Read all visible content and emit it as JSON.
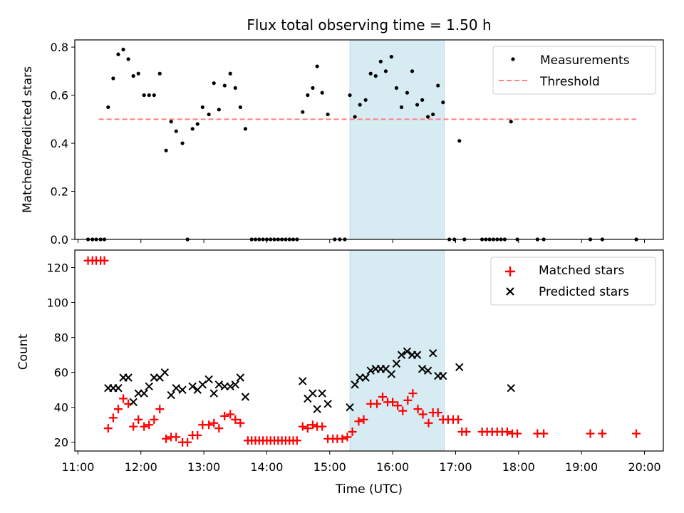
{
  "chart_data": [
    {
      "type": "scatter",
      "title": "Flux total observing time = 1.50 h",
      "xlabel": "",
      "ylabel": "Matched/Predicted stars",
      "xlim": [
        10.95,
        20.3
      ],
      "ylim": [
        0,
        0.83
      ],
      "yticks": [
        0.0,
        0.2,
        0.4,
        0.6,
        0.8
      ],
      "ytick_labels": [
        "0.0",
        "0.2",
        "0.4",
        "0.6",
        "0.8"
      ],
      "highlight_span": [
        15.32,
        16.82
      ],
      "legend": [
        "Measurements",
        "Threshold"
      ],
      "legend_position": "top-right",
      "threshold": {
        "name": "Threshold",
        "value": 0.5,
        "x_range": [
          11.33,
          19.87
        ],
        "color": "#ff7f7f"
      },
      "series": [
        {
          "name": "Measurements",
          "marker": "dot",
          "color": "#000000",
          "points": [
            [
              11.16,
              0
            ],
            [
              11.23,
              0
            ],
            [
              11.29,
              0
            ],
            [
              11.36,
              0
            ],
            [
              11.42,
              0
            ],
            [
              11.48,
              0.55
            ],
            [
              11.56,
              0.67
            ],
            [
              11.64,
              0.77
            ],
            [
              11.72,
              0.79
            ],
            [
              11.8,
              0.75
            ],
            [
              11.88,
              0.68
            ],
            [
              11.96,
              0.69
            ],
            [
              12.05,
              0.6
            ],
            [
              12.13,
              0.6
            ],
            [
              12.21,
              0.6
            ],
            [
              12.3,
              0.69
            ],
            [
              12.4,
              0.37
            ],
            [
              12.48,
              0.49
            ],
            [
              12.56,
              0.45
            ],
            [
              12.66,
              0.4
            ],
            [
              12.74,
              0
            ],
            [
              12.82,
              0.46
            ],
            [
              12.9,
              0.48
            ],
            [
              12.98,
              0.55
            ],
            [
              13.08,
              0.52
            ],
            [
              13.16,
              0.65
            ],
            [
              13.24,
              0.54
            ],
            [
              13.33,
              0.64
            ],
            [
              13.42,
              0.69
            ],
            [
              13.5,
              0.63
            ],
            [
              13.58,
              0.55
            ],
            [
              13.66,
              0.46
            ],
            [
              13.76,
              0
            ],
            [
              13.82,
              0
            ],
            [
              13.88,
              0
            ],
            [
              13.94,
              0
            ],
            [
              14.0,
              0
            ],
            [
              14.06,
              0
            ],
            [
              14.12,
              0
            ],
            [
              14.18,
              0
            ],
            [
              14.24,
              0
            ],
            [
              14.3,
              0
            ],
            [
              14.36,
              0
            ],
            [
              14.42,
              0
            ],
            [
              14.48,
              0
            ],
            [
              14.57,
              0.53
            ],
            [
              14.65,
              0.6
            ],
            [
              14.73,
              0.63
            ],
            [
              14.8,
              0.72
            ],
            [
              14.88,
              0.61
            ],
            [
              14.97,
              0.52
            ],
            [
              15.08,
              0
            ],
            [
              15.16,
              0
            ],
            [
              15.24,
              0
            ],
            [
              15.32,
              0.6
            ],
            [
              15.4,
              0.51
            ],
            [
              15.48,
              0.56
            ],
            [
              15.57,
              0.58
            ],
            [
              15.65,
              0.69
            ],
            [
              15.73,
              0.68
            ],
            [
              15.81,
              0.74
            ],
            [
              15.89,
              0.7
            ],
            [
              15.98,
              0.76
            ],
            [
              16.06,
              0.63
            ],
            [
              16.14,
              0.55
            ],
            [
              16.23,
              0.61
            ],
            [
              16.31,
              0.7
            ],
            [
              16.39,
              0.56
            ],
            [
              16.47,
              0.58
            ],
            [
              16.56,
              0.51
            ],
            [
              16.64,
              0.52
            ],
            [
              16.72,
              0.64
            ],
            [
              16.8,
              0.57
            ],
            [
              16.9,
              0
            ],
            [
              16.98,
              0
            ],
            [
              17.06,
              0.41
            ],
            [
              17.14,
              0
            ],
            [
              17.42,
              0
            ],
            [
              17.48,
              0
            ],
            [
              17.54,
              0
            ],
            [
              17.6,
              0
            ],
            [
              17.66,
              0
            ],
            [
              17.72,
              0
            ],
            [
              17.78,
              0
            ],
            [
              17.88,
              0.49
            ],
            [
              17.98,
              0
            ],
            [
              18.3,
              0
            ],
            [
              18.4,
              0
            ],
            [
              19.14,
              0
            ],
            [
              19.33,
              0
            ],
            [
              19.87,
              0
            ]
          ]
        }
      ]
    },
    {
      "type": "scatter",
      "title": "",
      "xlabel": "Time (UTC)",
      "ylabel": "Count",
      "xlim": [
        10.95,
        20.3
      ],
      "ylim": [
        15,
        130
      ],
      "yticks": [
        20,
        40,
        60,
        80,
        100,
        120
      ],
      "ytick_labels": [
        "20",
        "40",
        "60",
        "80",
        "100",
        "120"
      ],
      "xticks": [
        11,
        12,
        13,
        14,
        15,
        16,
        17,
        18,
        19,
        20
      ],
      "xtick_labels": [
        "11:00",
        "12:00",
        "13:00",
        "14:00",
        "15:00",
        "16:00",
        "17:00",
        "18:00",
        "19:00",
        "20:00"
      ],
      "highlight_span": [
        15.32,
        16.82
      ],
      "legend": [
        "Matched stars",
        "Predicted stars"
      ],
      "legend_position": "top-right",
      "series": [
        {
          "name": "Matched stars",
          "marker": "plus",
          "color": "#ff0000",
          "points": [
            [
              11.16,
              124
            ],
            [
              11.23,
              124
            ],
            [
              11.29,
              124
            ],
            [
              11.36,
              124
            ],
            [
              11.42,
              124
            ],
            [
              11.48,
              28
            ],
            [
              11.56,
              34
            ],
            [
              11.64,
              39
            ],
            [
              11.72,
              45
            ],
            [
              11.8,
              42
            ],
            [
              11.88,
              29
            ],
            [
              11.96,
              33
            ],
            [
              12.05,
              29
            ],
            [
              12.13,
              30
            ],
            [
              12.21,
              33
            ],
            [
              12.3,
              39
            ],
            [
              12.4,
              22
            ],
            [
              12.48,
              23
            ],
            [
              12.56,
              23
            ],
            [
              12.66,
              20
            ],
            [
              12.74,
              20
            ],
            [
              12.82,
              24
            ],
            [
              12.9,
              24
            ],
            [
              12.98,
              30
            ],
            [
              13.08,
              30
            ],
            [
              13.16,
              31
            ],
            [
              13.24,
              28
            ],
            [
              13.33,
              35
            ],
            [
              13.42,
              36
            ],
            [
              13.5,
              33
            ],
            [
              13.58,
              31
            ],
            [
              13.7,
              21
            ],
            [
              13.76,
              21
            ],
            [
              13.82,
              21
            ],
            [
              13.88,
              21
            ],
            [
              13.94,
              21
            ],
            [
              14.0,
              21
            ],
            [
              14.06,
              21
            ],
            [
              14.12,
              21
            ],
            [
              14.18,
              21
            ],
            [
              14.24,
              21
            ],
            [
              14.3,
              21
            ],
            [
              14.36,
              21
            ],
            [
              14.42,
              21
            ],
            [
              14.48,
              21
            ],
            [
              14.57,
              29
            ],
            [
              14.65,
              28
            ],
            [
              14.73,
              30
            ],
            [
              14.8,
              29
            ],
            [
              14.88,
              29
            ],
            [
              14.97,
              22
            ],
            [
              15.05,
              22
            ],
            [
              15.12,
              22
            ],
            [
              15.2,
              22
            ],
            [
              15.28,
              23
            ],
            [
              15.36,
              26
            ],
            [
              15.46,
              32
            ],
            [
              15.54,
              33
            ],
            [
              15.65,
              42
            ],
            [
              15.75,
              42
            ],
            [
              15.84,
              46
            ],
            [
              15.92,
              43
            ],
            [
              16.0,
              43
            ],
            [
              16.08,
              41
            ],
            [
              16.16,
              38
            ],
            [
              16.24,
              44
            ],
            [
              16.32,
              48
            ],
            [
              16.4,
              39
            ],
            [
              16.48,
              36
            ],
            [
              16.57,
              31
            ],
            [
              16.64,
              37
            ],
            [
              16.72,
              37
            ],
            [
              16.8,
              33
            ],
            [
              16.88,
              33
            ],
            [
              16.96,
              33
            ],
            [
              17.04,
              33
            ],
            [
              17.1,
              26
            ],
            [
              17.17,
              26
            ],
            [
              17.42,
              26
            ],
            [
              17.5,
              26
            ],
            [
              17.58,
              26
            ],
            [
              17.66,
              26
            ],
            [
              17.74,
              26
            ],
            [
              17.82,
              26
            ],
            [
              17.9,
              25
            ],
            [
              17.98,
              25
            ],
            [
              18.3,
              25
            ],
            [
              18.4,
              25
            ],
            [
              19.14,
              25
            ],
            [
              19.33,
              25
            ],
            [
              19.87,
              25
            ]
          ]
        },
        {
          "name": "Predicted stars",
          "marker": "x",
          "color": "#000000",
          "points": [
            [
              11.48,
              51
            ],
            [
              11.56,
              51
            ],
            [
              11.64,
              51
            ],
            [
              11.72,
              57
            ],
            [
              11.8,
              57
            ],
            [
              11.88,
              43
            ],
            [
              11.96,
              48
            ],
            [
              12.05,
              48
            ],
            [
              12.13,
              52
            ],
            [
              12.21,
              57
            ],
            [
              12.3,
              57
            ],
            [
              12.38,
              60
            ],
            [
              12.48,
              47
            ],
            [
              12.56,
              51
            ],
            [
              12.66,
              50
            ],
            [
              12.82,
              52
            ],
            [
              12.9,
              50
            ],
            [
              12.98,
              53
            ],
            [
              13.08,
              56
            ],
            [
              13.16,
              48
            ],
            [
              13.24,
              53
            ],
            [
              13.33,
              52
            ],
            [
              13.42,
              52
            ],
            [
              13.5,
              53
            ],
            [
              13.58,
              57
            ],
            [
              13.66,
              46
            ],
            [
              14.57,
              55
            ],
            [
              14.65,
              45
            ],
            [
              14.73,
              48
            ],
            [
              14.8,
              39
            ],
            [
              14.88,
              48
            ],
            [
              14.97,
              42
            ],
            [
              15.32,
              40
            ],
            [
              15.4,
              53
            ],
            [
              15.48,
              57
            ],
            [
              15.57,
              57
            ],
            [
              15.65,
              61
            ],
            [
              15.73,
              62
            ],
            [
              15.81,
              62
            ],
            [
              15.89,
              62
            ],
            [
              15.98,
              59
            ],
            [
              16.06,
              65
            ],
            [
              16.14,
              70
            ],
            [
              16.23,
              72
            ],
            [
              16.31,
              70
            ],
            [
              16.39,
              70
            ],
            [
              16.47,
              62
            ],
            [
              16.56,
              61
            ],
            [
              16.64,
              71
            ],
            [
              16.72,
              58
            ],
            [
              16.8,
              58
            ],
            [
              17.06,
              63
            ],
            [
              17.88,
              51
            ]
          ]
        }
      ]
    }
  ]
}
